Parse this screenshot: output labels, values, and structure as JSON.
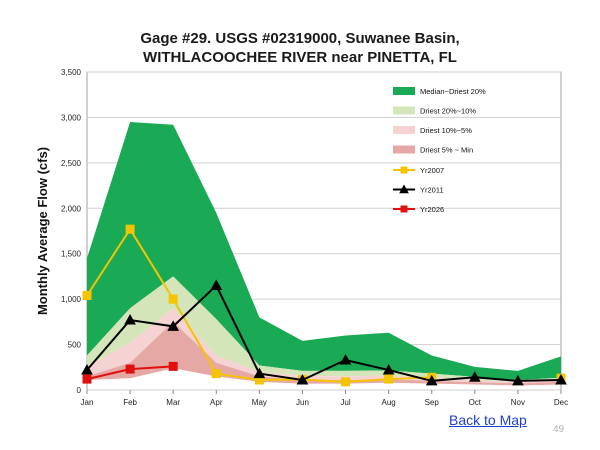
{
  "chart_data": {
    "type": "area",
    "title_line1": "Gage #29. USGS #02319000, Suwanee Basin,",
    "title_line2": "WITHLACOOCHEE RIVER near PINETTA, FL",
    "ylabel": "Monthly Average Flow (cfs)",
    "xlabel": "",
    "ylim": [
      0,
      3500
    ],
    "yticks": [
      0,
      500,
      1000,
      1500,
      2000,
      2500,
      3000,
      3500
    ],
    "ytick_labels": [
      "0",
      "500",
      "1,000",
      "1,500",
      "2,000",
      "2,500",
      "3,000",
      "3,500"
    ],
    "categories": [
      "Jan",
      "Feb",
      "Mar",
      "Apr",
      "May",
      "Jun",
      "Jul",
      "Aug",
      "Sep",
      "Oct",
      "Nov",
      "Dec"
    ],
    "grid": true,
    "legend_position": "top-right",
    "bands": [
      {
        "name": "Median~Driest 20%",
        "color": "#1aaa55",
        "upper": [
          1450,
          2950,
          2920,
          1950,
          800,
          540,
          600,
          630,
          380,
          255,
          210,
          370
        ],
        "lower": [
          380,
          900,
          1250,
          780,
          270,
          210,
          210,
          215,
          180,
          145,
          110,
          135
        ]
      },
      {
        "name": "Driest 20%~10%",
        "color": "#d4e5b9",
        "upper": [
          380,
          900,
          1250,
          780,
          270,
          210,
          210,
          215,
          180,
          145,
          110,
          135
        ],
        "lower": [
          260,
          520,
          900,
          380,
          200,
          155,
          150,
          160,
          140,
          110,
          90,
          110
        ]
      },
      {
        "name": "Driest 10%~5%",
        "color": "#f5d3d3",
        "upper": [
          260,
          520,
          900,
          380,
          200,
          155,
          150,
          160,
          140,
          110,
          90,
          110
        ],
        "lower": [
          150,
          300,
          750,
          300,
          150,
          110,
          110,
          120,
          100,
          85,
          75,
          90
        ]
      },
      {
        "name": "Driest 5% ~ Min",
        "color": "#e6a8a4",
        "upper": [
          150,
          300,
          750,
          300,
          150,
          110,
          110,
          120,
          100,
          85,
          75,
          90
        ],
        "lower": [
          110,
          130,
          240,
          150,
          90,
          70,
          70,
          80,
          70,
          60,
          50,
          60
        ]
      }
    ],
    "series": [
      {
        "name": "Yr2007",
        "color": "#f5c400",
        "marker": "square",
        "values": [
          1040,
          1770,
          1000,
          180,
          110,
          115,
          90,
          120,
          140,
          null,
          null,
          130
        ]
      },
      {
        "name": "Yr2011",
        "color": "#000000",
        "marker": "triangle",
        "values": [
          220,
          770,
          700,
          1150,
          180,
          110,
          330,
          220,
          100,
          140,
          100,
          110
        ]
      },
      {
        "name": "Yr2026",
        "color": "#e01010",
        "marker": "square",
        "values": [
          120,
          230,
          260,
          null,
          null,
          null,
          null,
          null,
          null,
          null,
          null,
          null
        ]
      }
    ]
  },
  "footer": {
    "link_text": "Back to Map",
    "page_number": "49"
  }
}
